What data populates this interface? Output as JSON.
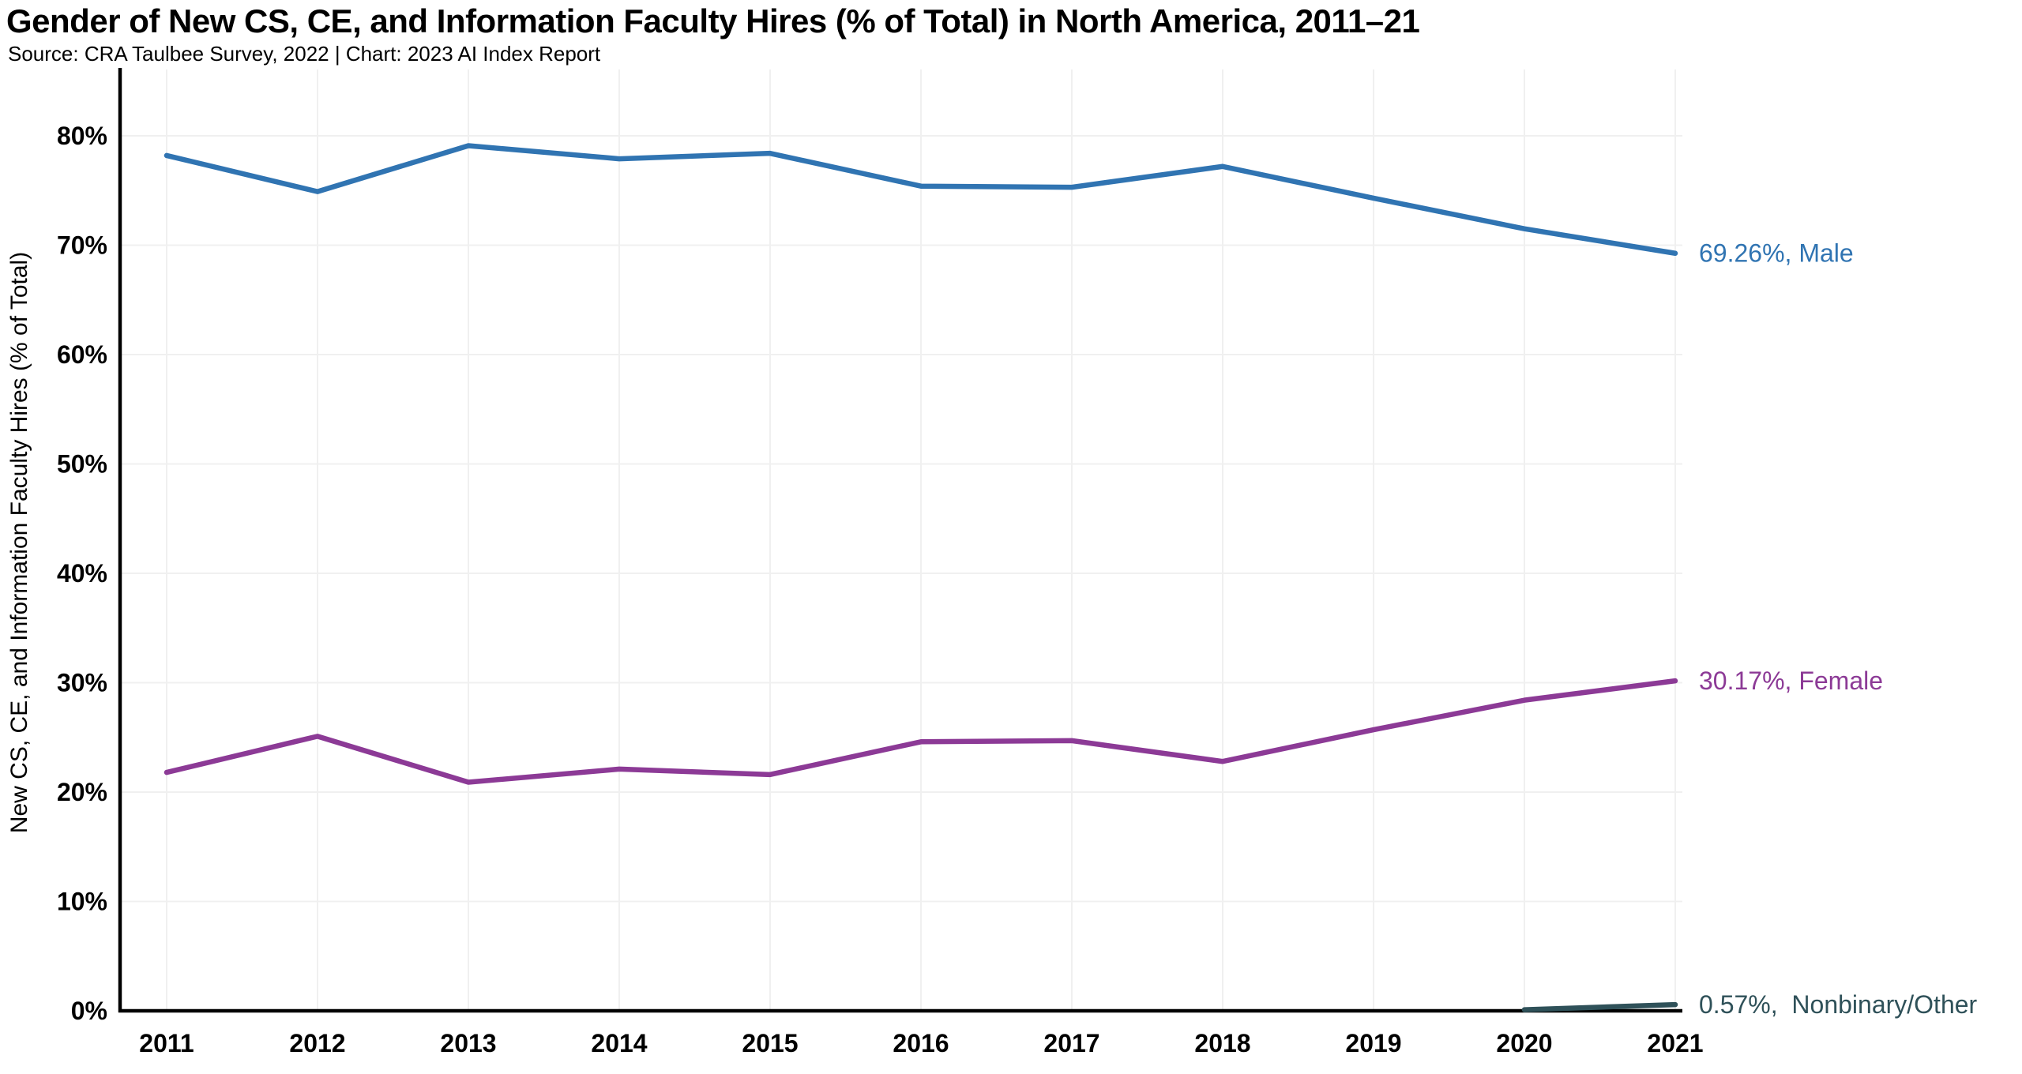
{
  "header": {
    "title": "Gender of New CS, CE, and Information Faculty Hires (% of Total) in North America, 2011–21",
    "subtitle": "Source: CRA Taulbee Survey, 2022 | Chart: 2023 AI Index Report"
  },
  "chart_data": {
    "type": "line",
    "title": "Gender of New CS, CE, and Information Faculty Hires (% of Total) in North America, 2011–21",
    "source_note": "Source: CRA Taulbee Survey, 2022 | Chart: 2023 AI Index Report",
    "x": [
      2011,
      2012,
      2013,
      2014,
      2015,
      2016,
      2017,
      2018,
      2019,
      2020,
      2021
    ],
    "xlabel": "",
    "ylabel": "New CS, CE, and Information Faculty Hires (% of Total)",
    "ylim": [
      0,
      85
    ],
    "yticks": [
      0,
      10,
      20,
      30,
      40,
      50,
      60,
      70,
      80
    ],
    "ytick_suffix": "%",
    "grid": true,
    "legend_position": "end-of-line-labels",
    "series": [
      {
        "name": "Male",
        "color": "#3074b2",
        "values": [
          78.2,
          74.9,
          79.1,
          77.9,
          78.4,
          75.4,
          75.3,
          77.2,
          74.3,
          71.5,
          69.26
        ],
        "final_value_label": "69.26%",
        "end_label": "69.26%, Male"
      },
      {
        "name": "Female",
        "color": "#8c3a96",
        "values": [
          21.8,
          25.1,
          20.9,
          22.1,
          21.6,
          24.6,
          24.7,
          22.8,
          25.7,
          28.4,
          30.17
        ],
        "final_value_label": "30.17%",
        "end_label": "30.17%, Female"
      },
      {
        "name": "Nonbinary/Other",
        "color": "#2f5159",
        "values": [
          null,
          null,
          null,
          null,
          null,
          null,
          null,
          null,
          null,
          0.1,
          0.57
        ],
        "final_value_label": "0.57%",
        "end_label": "0.57%,  Nonbinary/Other"
      }
    ]
  },
  "colors": {
    "male_line": "#3074b2",
    "female_line": "#8c3a96",
    "nonbinary_line": "#2f5159",
    "axis": "#000000",
    "grid": "#f0f0f0",
    "text": "#000000"
  }
}
